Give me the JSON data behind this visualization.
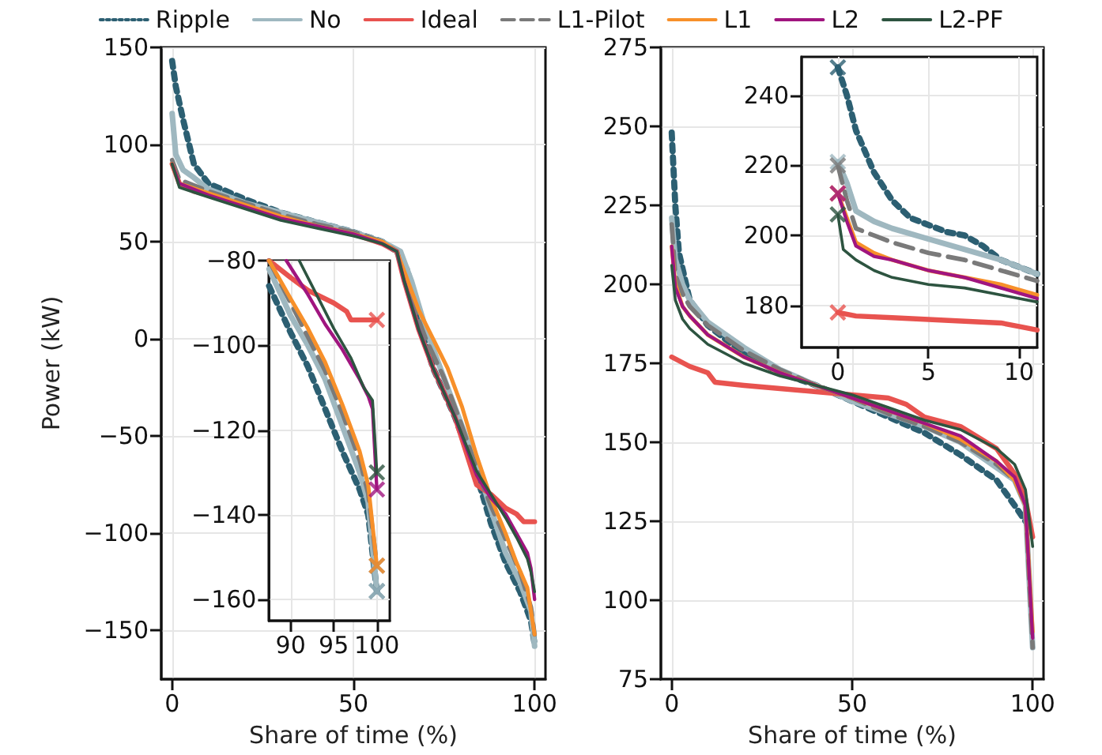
{
  "chart_data": [
    {
      "type": "line",
      "xlabel": "Share of time (%)",
      "ylabel": "Power (kW)",
      "xlim": [
        -3,
        103
      ],
      "ylim": [
        -175,
        150
      ],
      "xticks": [
        0,
        50,
        100
      ],
      "yticks": [
        -150,
        -100,
        -50,
        0,
        50,
        100,
        150
      ],
      "grid": true,
      "legend": "top",
      "series": [
        {
          "name": "Ripple",
          "color": "#2c5f72",
          "line_style": "dotted",
          "x": [
            0,
            1,
            3,
            6,
            10,
            20,
            30,
            40,
            50,
            58,
            62,
            65,
            68,
            72,
            78,
            84,
            88,
            92,
            96,
            99,
            100
          ],
          "values": [
            143,
            130,
            113,
            90,
            80,
            72,
            65,
            60,
            55,
            50,
            45,
            35,
            10,
            -15,
            -40,
            -70,
            -95,
            -115,
            -130,
            -145,
            -157
          ]
        },
        {
          "name": "No",
          "color": "#9fb8c0",
          "x": [
            0,
            1,
            3,
            6,
            10,
            20,
            30,
            40,
            50,
            58,
            63,
            66,
            70,
            75,
            80,
            85,
            88,
            92,
            96,
            99,
            100
          ],
          "values": [
            116,
            95,
            87,
            83,
            77,
            70,
            65,
            60,
            55,
            50,
            45,
            30,
            5,
            -20,
            -45,
            -70,
            -88,
            -110,
            -125,
            -140,
            -158
          ]
        },
        {
          "name": "Ideal",
          "color": "#e8534f",
          "x": [
            0,
            2,
            6,
            10,
            20,
            30,
            40,
            50,
            58,
            62,
            64,
            68,
            72,
            78,
            84,
            88,
            92,
            95,
            97,
            100
          ],
          "values": [
            90,
            80,
            76,
            74,
            68,
            62,
            58,
            54,
            49,
            45,
            30,
            5,
            -15,
            -40,
            -75,
            -80,
            -87,
            -90,
            -94,
            -94
          ]
        },
        {
          "name": "L1-Pilot",
          "color": "#7a7a7a",
          "line_style": "dashed",
          "x": [
            0,
            2,
            10,
            20,
            30,
            40,
            50,
            58,
            62,
            65,
            70,
            75,
            80,
            85,
            88,
            92,
            96,
            99,
            100
          ],
          "values": [
            92,
            82,
            76,
            70,
            64,
            59,
            55,
            50,
            45,
            25,
            0,
            -20,
            -45,
            -72,
            -86,
            -103,
            -120,
            -138,
            -152
          ]
        },
        {
          "name": "L1",
          "color": "#f7902a",
          "x": [
            0,
            2,
            10,
            20,
            30,
            40,
            50,
            58,
            62,
            65,
            68,
            72,
            76,
            80,
            84,
            88,
            92,
            95,
            98,
            99,
            100
          ],
          "values": [
            90,
            80,
            75,
            69,
            63,
            58,
            54,
            50,
            45,
            30,
            15,
            0,
            -15,
            -35,
            -60,
            -82,
            -100,
            -115,
            -128,
            -140,
            -152
          ]
        },
        {
          "name": "L2",
          "color": "#a0157f",
          "x": [
            0,
            2,
            10,
            20,
            30,
            40,
            50,
            58,
            62,
            64,
            68,
            72,
            78,
            84,
            88,
            92,
            95,
            98,
            99,
            100
          ],
          "values": [
            90,
            80,
            74,
            68,
            62,
            58,
            54,
            49,
            45,
            30,
            5,
            -15,
            -40,
            -70,
            -82,
            -90,
            -100,
            -110,
            -118,
            -134
          ]
        },
        {
          "name": "L2-PF",
          "color": "#2d5440",
          "x": [
            0,
            2,
            10,
            20,
            30,
            40,
            50,
            58,
            62,
            64,
            68,
            72,
            78,
            84,
            88,
            92,
            95,
            98,
            99,
            100
          ],
          "values": [
            90,
            78,
            73,
            67,
            61,
            57,
            53,
            49,
            45,
            30,
            5,
            -15,
            -40,
            -68,
            -80,
            -92,
            -102,
            -113,
            -120,
            -130
          ]
        }
      ]
    },
    {
      "type": "line",
      "xlabel": "Share of time (%)",
      "xlim": [
        -3,
        103
      ],
      "ylim": [
        75,
        275
      ],
      "xticks": [
        0,
        50,
        100
      ],
      "yticks": [
        75,
        100,
        125,
        150,
        175,
        200,
        225,
        250,
        275
      ],
      "grid": true,
      "series": [
        {
          "color": "#2c5f72",
          "line_style": "dotted",
          "x": [
            0,
            1,
            2,
            5,
            10,
            20,
            30,
            40,
            50,
            60,
            70,
            80,
            90,
            95,
            98,
            100
          ],
          "values": [
            248,
            225,
            210,
            195,
            187,
            178,
            172,
            168,
            163,
            158,
            153,
            146,
            138,
            130,
            125,
            122
          ]
        },
        {
          "color": "#9fb8c0",
          "x": [
            0,
            1,
            3,
            5,
            10,
            20,
            30,
            40,
            50,
            60,
            70,
            80,
            90,
            95,
            98,
            100
          ],
          "values": [
            221,
            208,
            200,
            195,
            188,
            180,
            173,
            168,
            163,
            159,
            155,
            150,
            142,
            138,
            130,
            85
          ]
        },
        {
          "color": "#e8534f",
          "x": [
            0,
            5,
            10,
            12,
            20,
            30,
            40,
            50,
            60,
            65,
            70,
            80,
            90,
            95,
            98,
            100
          ],
          "values": [
            177,
            174,
            172,
            169,
            168,
            167,
            166,
            165,
            164,
            162,
            158,
            155,
            148,
            140,
            132,
            120
          ]
        },
        {
          "color": "#7a7a7a",
          "line_style": "dashed",
          "x": [
            0,
            1,
            3,
            5,
            10,
            20,
            30,
            40,
            50,
            60,
            70,
            80,
            90,
            95,
            98,
            100
          ],
          "values": [
            219,
            203,
            197,
            193,
            187,
            179,
            173,
            168,
            164,
            159,
            155,
            150,
            143,
            138,
            130,
            85
          ]
        },
        {
          "color": "#f7902a",
          "x": [
            0,
            1,
            3,
            5,
            10,
            20,
            30,
            40,
            50,
            60,
            70,
            80,
            90,
            95,
            98,
            100
          ],
          "values": [
            212,
            200,
            193,
            190,
            184,
            177,
            172,
            168,
            164,
            160,
            156,
            151,
            144,
            138,
            130,
            90
          ]
        },
        {
          "color": "#a0157f",
          "x": [
            0,
            1,
            3,
            5,
            10,
            20,
            30,
            40,
            50,
            60,
            70,
            80,
            90,
            95,
            98,
            100
          ],
          "values": [
            212,
            199,
            193,
            190,
            184,
            177,
            172,
            168,
            164,
            160,
            156,
            152,
            144,
            139,
            130,
            88
          ]
        },
        {
          "color": "#2d5440",
          "x": [
            0,
            1,
            3,
            5,
            10,
            20,
            30,
            40,
            50,
            60,
            70,
            80,
            90,
            95,
            98,
            100
          ],
          "values": [
            206,
            195,
            189,
            186,
            181,
            175,
            171,
            168,
            165,
            161,
            157,
            154,
            148,
            143,
            135,
            117
          ]
        }
      ]
    },
    {
      "type": "line",
      "xlim": [
        87.5,
        101.5
      ],
      "ylim": [
        -165,
        -80
      ],
      "xticks": [
        90,
        95,
        100
      ],
      "yticks": [
        -160,
        -140,
        -120,
        -100,
        -80
      ],
      "grid": true,
      "series": [
        {
          "color": "#2c5f72",
          "line_style": "dotted",
          "x": [
            87.5,
            90,
            92,
            94,
            96,
            98,
            99,
            100
          ],
          "values": [
            -86,
            -97,
            -105,
            -115,
            -125,
            -134,
            -140,
            -158
          ]
        },
        {
          "color": "#9fb8c0",
          "x": [
            87.5,
            90,
            92,
            94,
            96,
            98,
            99,
            100
          ],
          "values": [
            -82,
            -93,
            -100,
            -108,
            -119,
            -130,
            -137,
            -158
          ]
        },
        {
          "color": "#e8534f",
          "x": [
            87.5,
            90,
            92,
            95,
            96.5,
            97,
            100
          ],
          "values": [
            -80,
            -84,
            -87,
            -90,
            -92,
            -94,
            -94
          ]
        },
        {
          "color": "#7a7a7a",
          "line_style": "dashed",
          "x": [
            87.5,
            90,
            92,
            94,
            96,
            98,
            99,
            100
          ],
          "values": [
            -80,
            -90,
            -98,
            -106,
            -116,
            -127,
            -135,
            -152
          ]
        },
        {
          "color": "#f7902a",
          "x": [
            87.5,
            90,
            92,
            94,
            96,
            98,
            99,
            100
          ],
          "values": [
            -80,
            -89,
            -96,
            -104,
            -114,
            -125,
            -133,
            -152
          ]
        },
        {
          "color": "#a0157f",
          "x": [
            89.5,
            92,
            94,
            96,
            98,
            99,
            99.5,
            100
          ],
          "values": [
            -80,
            -88,
            -95,
            -101,
            -108,
            -112,
            -115,
            -134
          ]
        },
        {
          "color": "#2d5440",
          "x": [
            91,
            93,
            95,
            97,
            98.5,
            99.5,
            100
          ],
          "values": [
            -80,
            -88,
            -96,
            -103,
            -110,
            -113,
            -130
          ]
        },
        {
          "type": "scatter",
          "marker": "cross",
          "color": "#2c5f72",
          "x": [
            100
          ],
          "values": [
            -158
          ]
        },
        {
          "type": "scatter",
          "marker": "cross",
          "color": "#9fb8c0",
          "x": [
            100
          ],
          "values": [
            -158
          ]
        },
        {
          "type": "scatter",
          "marker": "cross",
          "color": "#e8534f",
          "x": [
            100
          ],
          "values": [
            -94
          ]
        },
        {
          "type": "scatter",
          "marker": "cross",
          "color": "#7a7a7a",
          "x": [
            100
          ],
          "values": [
            -152
          ]
        },
        {
          "type": "scatter",
          "marker": "cross",
          "color": "#f7902a",
          "x": [
            100
          ],
          "values": [
            -152
          ]
        },
        {
          "type": "scatter",
          "marker": "cross",
          "color": "#a0157f",
          "x": [
            100
          ],
          "values": [
            -134
          ]
        },
        {
          "type": "scatter",
          "marker": "cross",
          "color": "#2d5440",
          "x": [
            100
          ],
          "values": [
            -130
          ]
        }
      ]
    },
    {
      "type": "line",
      "xlim": [
        -2,
        11
      ],
      "ylim": [
        168,
        251
      ],
      "xticks": [
        0,
        5,
        10
      ],
      "yticks": [
        180,
        200,
        220,
        240
      ],
      "grid": true,
      "series": [
        {
          "color": "#2c5f72",
          "line_style": "dotted",
          "x": [
            0,
            0.5,
            1,
            2,
            3,
            4,
            5,
            6,
            7,
            8,
            9,
            10,
            11
          ],
          "values": [
            248,
            240,
            230,
            218,
            210,
            205,
            203,
            201,
            200,
            197,
            193,
            191,
            189
          ]
        },
        {
          "color": "#9fb8c0",
          "x": [
            0,
            0.5,
            1,
            2,
            3,
            5,
            7,
            9,
            11
          ],
          "values": [
            221,
            215,
            207,
            204,
            202,
            199,
            196,
            193,
            189
          ]
        },
        {
          "color": "#e8534f",
          "x": [
            0,
            1,
            3,
            5,
            7,
            9,
            10,
            11
          ],
          "values": [
            178,
            177,
            176.5,
            176,
            175.5,
            175,
            174,
            173
          ]
        },
        {
          "color": "#7a7a7a",
          "line_style": "dashed",
          "x": [
            0,
            0.5,
            1,
            2,
            3,
            5,
            7,
            9,
            11
          ],
          "values": [
            220,
            210,
            202,
            200,
            198,
            195,
            193,
            190,
            187
          ]
        },
        {
          "color": "#f7902a",
          "x": [
            0,
            0.5,
            1,
            2,
            3,
            5,
            7,
            9,
            11
          ],
          "values": [
            212,
            205,
            198,
            195,
            193,
            190,
            188,
            186,
            183
          ]
        },
        {
          "color": "#a0157f",
          "x": [
            0,
            0.5,
            1,
            2,
            3,
            5,
            7,
            9,
            11
          ],
          "values": [
            212,
            204,
            197,
            194,
            193,
            190,
            188,
            185,
            182
          ]
        },
        {
          "color": "#2d5440",
          "x": [
            0,
            0.3,
            1,
            2,
            3,
            5,
            7,
            9,
            11
          ],
          "values": [
            206,
            196,
            193,
            190,
            188,
            186,
            185,
            183,
            181
          ]
        },
        {
          "type": "scatter",
          "marker": "cross",
          "color": "#2c5f72",
          "x": [
            0
          ],
          "values": [
            248
          ]
        },
        {
          "type": "scatter",
          "marker": "cross",
          "color": "#9fb8c0",
          "x": [
            0
          ],
          "values": [
            221
          ]
        },
        {
          "type": "scatter",
          "marker": "cross",
          "color": "#e8534f",
          "x": [
            0
          ],
          "values": [
            178
          ]
        },
        {
          "type": "scatter",
          "marker": "cross",
          "color": "#7a7a7a",
          "x": [
            0
          ],
          "values": [
            220
          ]
        },
        {
          "type": "scatter",
          "marker": "cross",
          "color": "#f7902a",
          "x": [
            0
          ],
          "values": [
            212
          ]
        },
        {
          "type": "scatter",
          "marker": "cross",
          "color": "#a0157f",
          "x": [
            0
          ],
          "values": [
            212
          ]
        },
        {
          "type": "scatter",
          "marker": "cross",
          "color": "#2d5440",
          "x": [
            0
          ],
          "values": [
            206
          ]
        }
      ]
    }
  ]
}
